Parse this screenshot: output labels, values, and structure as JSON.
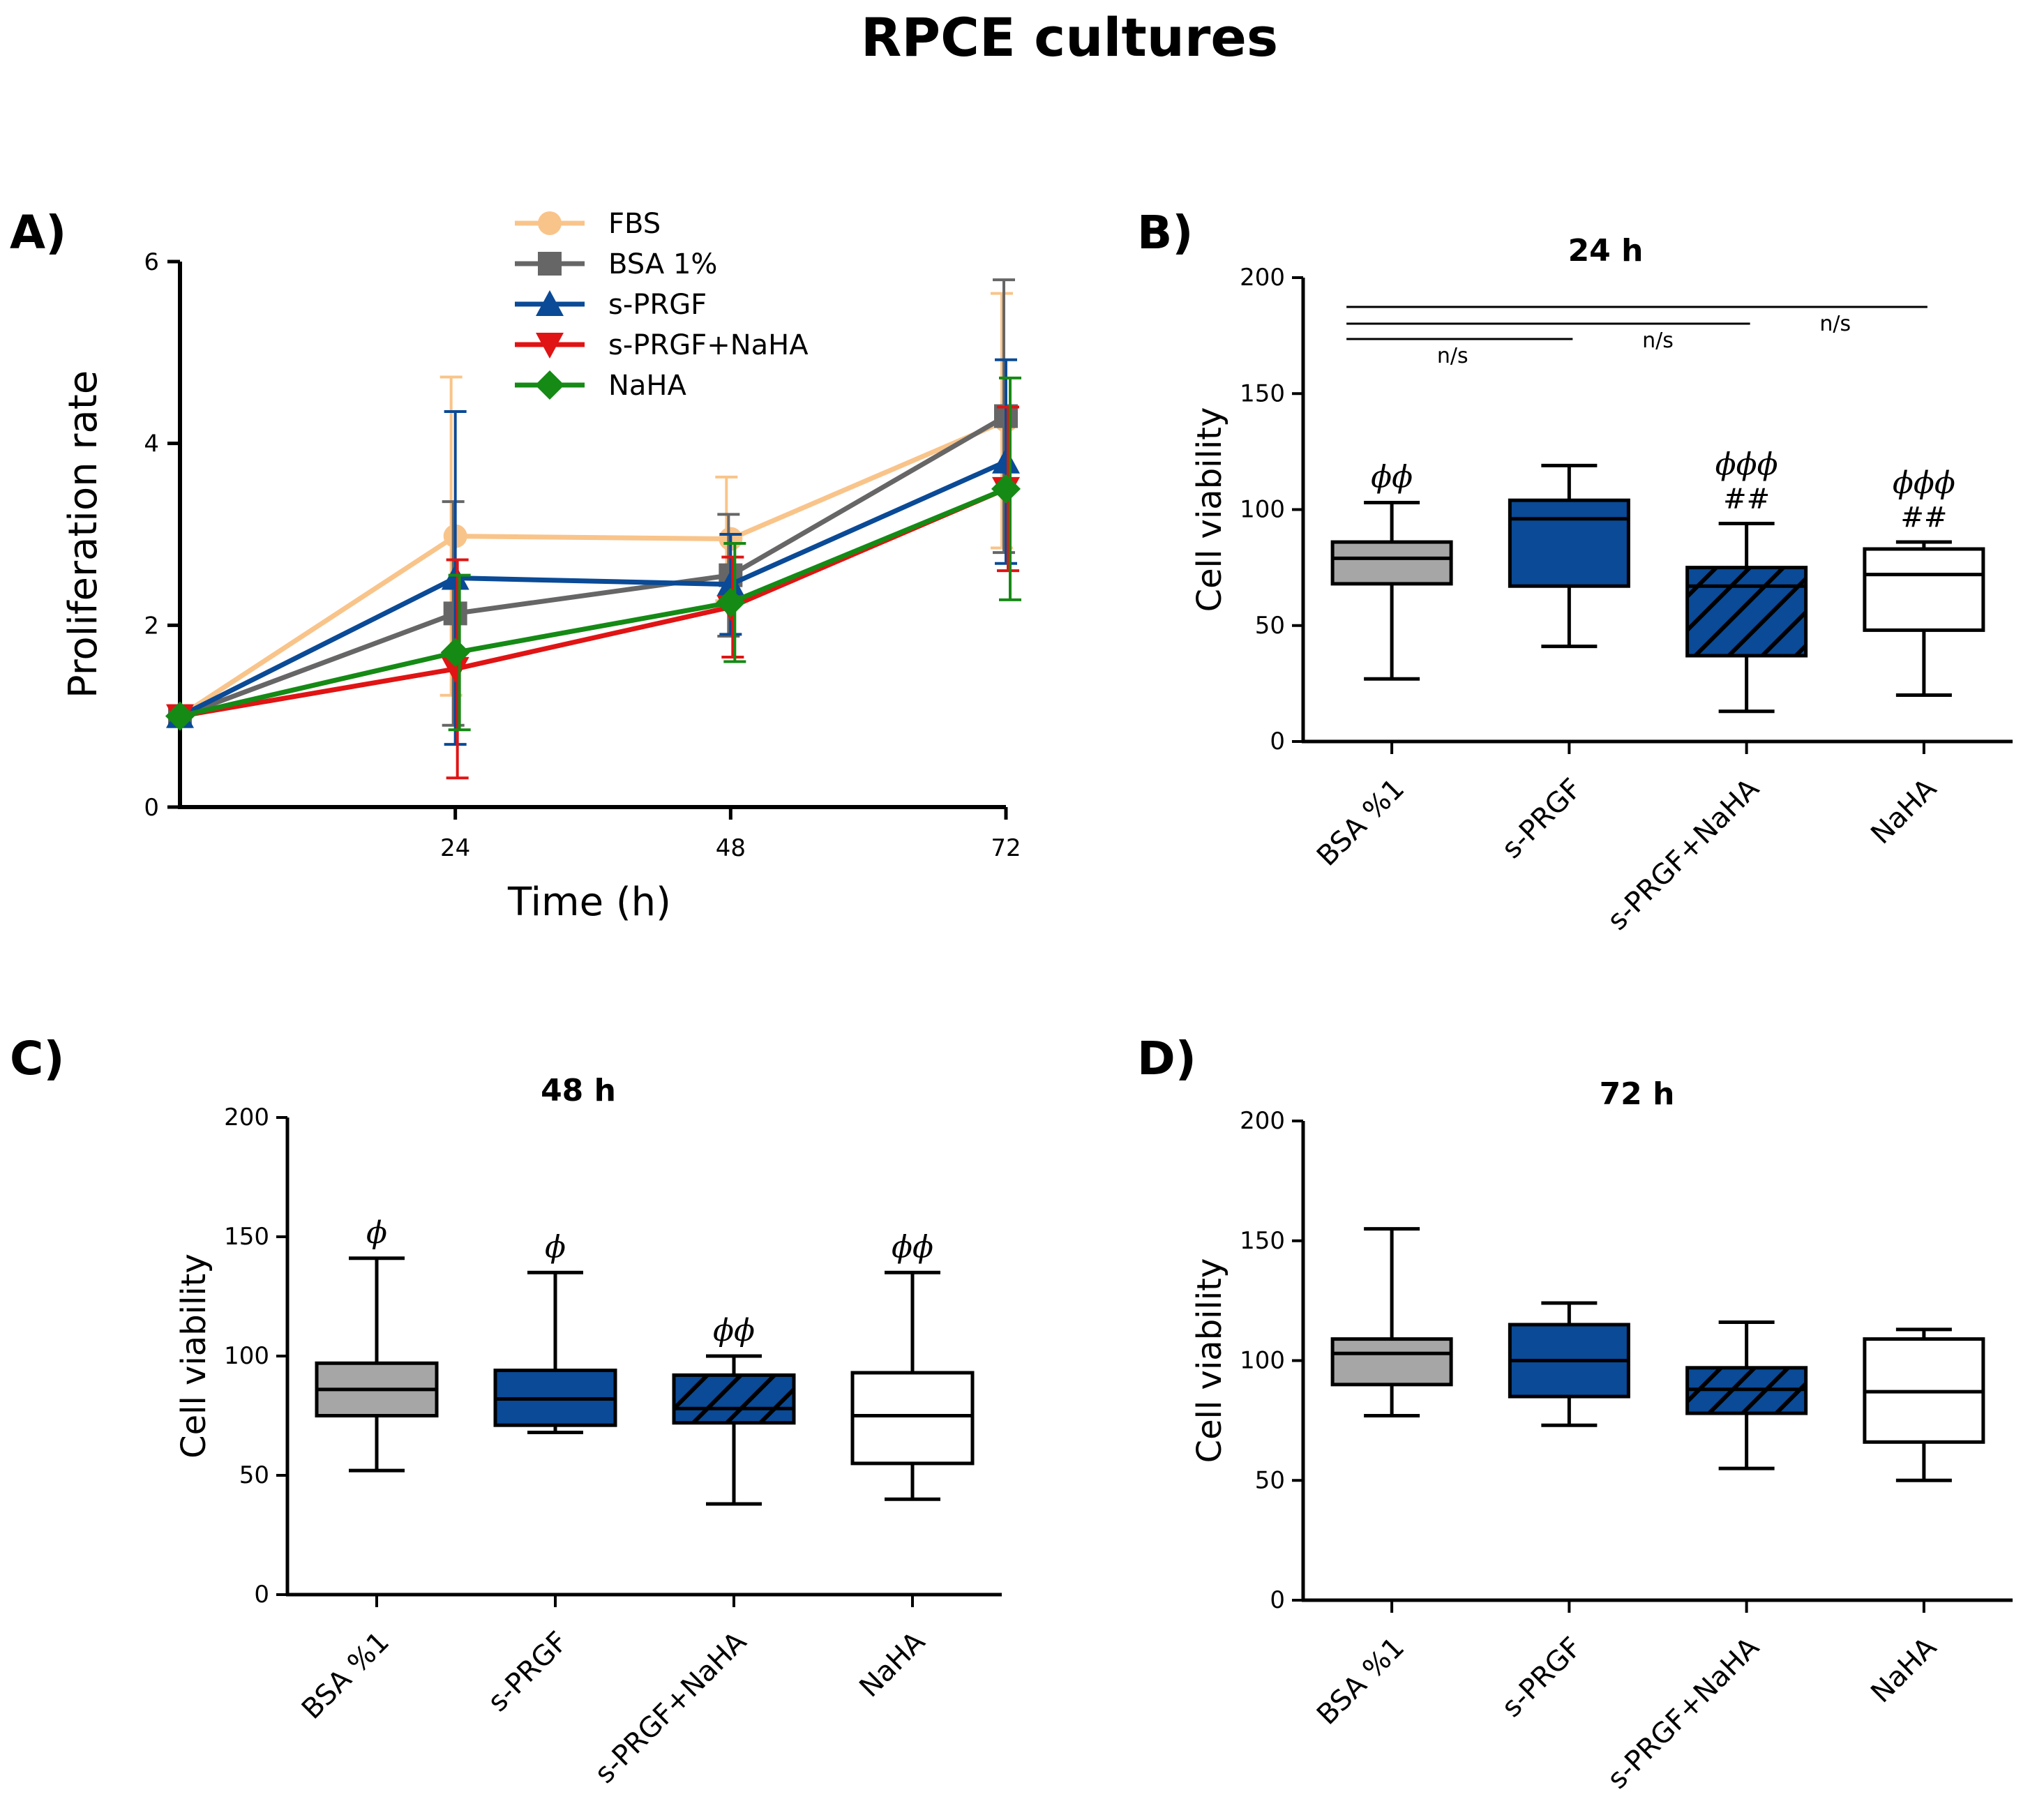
{
  "figure_title": "RPCE cultures",
  "colors": {
    "FBS": "#f9c48a",
    "BSA 1%": "#666666",
    "s-PRGF": "#0a4a96",
    "s-PRGF+NaHA": "#e01414",
    "NaHA": "#158a15",
    "box_gray": "#a6a6a6",
    "box_blue": "#0a4a96",
    "box_white": "#ffffff"
  },
  "panels": {
    "A": {
      "label": "A)"
    },
    "B": {
      "label": "B)"
    },
    "C": {
      "label": "C)"
    },
    "D": {
      "label": "D)"
    }
  },
  "chart_data": [
    {
      "id": "A",
      "type": "line",
      "title": "",
      "xlabel": "Time (h)",
      "ylabel": "Proliferation rate",
      "x": [
        0,
        24,
        48,
        72
      ],
      "xticks": [
        24,
        48,
        72
      ],
      "xlim": [
        0,
        72
      ],
      "ylim": [
        0,
        6
      ],
      "yticks": [
        0,
        2,
        4,
        6
      ],
      "legend_position": "top-center",
      "series": [
        {
          "name": "FBS",
          "marker": "circle",
          "values": [
            1.0,
            2.98,
            2.95,
            4.25
          ],
          "err": [
            0,
            1.75,
            0.68,
            1.4
          ]
        },
        {
          "name": "BSA 1%",
          "marker": "square",
          "values": [
            1.0,
            2.13,
            2.55,
            4.3
          ],
          "err": [
            0,
            1.23,
            0.67,
            1.5
          ]
        },
        {
          "name": "s-PRGF",
          "marker": "triangle-up",
          "values": [
            1.0,
            2.52,
            2.45,
            3.8
          ],
          "err": [
            0,
            1.83,
            0.55,
            1.12
          ]
        },
        {
          "name": "s-PRGF+NaHA",
          "marker": "triangle-down",
          "values": [
            1.0,
            1.52,
            2.2,
            3.5
          ],
          "err": [
            0,
            1.2,
            0.55,
            0.9
          ]
        },
        {
          "name": "NaHA",
          "marker": "diamond",
          "values": [
            1.0,
            1.7,
            2.25,
            3.5
          ],
          "err": [
            0,
            0.85,
            0.65,
            1.22
          ]
        }
      ]
    },
    {
      "id": "B",
      "type": "box",
      "title": "24 h",
      "ylabel": "Cell viability",
      "ylim": [
        0,
        200
      ],
      "yticks": [
        0,
        50,
        100,
        150,
        200
      ],
      "categories": [
        "BSA %1",
        "s-PRGF",
        "s-PRGF+NaHA",
        "NaHA"
      ],
      "boxes": [
        {
          "min": 27,
          "q1": 68,
          "median": 79,
          "q3": 86,
          "max": 103,
          "fill": "gray",
          "annotation": "ϕϕ",
          "hash": ""
        },
        {
          "min": 41,
          "q1": 67,
          "median": 96,
          "q3": 104,
          "max": 119,
          "fill": "blue",
          "annotation": "",
          "hash": ""
        },
        {
          "min": 13,
          "q1": 37,
          "median": 67,
          "q3": 75,
          "max": 94,
          "fill": "hatched",
          "annotation": "ϕϕϕ",
          "hash": "##"
        },
        {
          "min": 20,
          "q1": 48,
          "median": 72,
          "q3": 83,
          "max": 86,
          "fill": "white",
          "annotation": "ϕϕϕ",
          "hash": "##"
        }
      ],
      "comparisons": [
        {
          "from": 0,
          "to": 1,
          "label": "n/s"
        },
        {
          "from": 0,
          "to": 2,
          "label": "n/s"
        },
        {
          "from": 0,
          "to": 3,
          "label": "n/s"
        }
      ]
    },
    {
      "id": "C",
      "type": "box",
      "title": "48 h",
      "ylabel": "Cell viability",
      "ylim": [
        0,
        200
      ],
      "yticks": [
        0,
        50,
        100,
        150,
        200
      ],
      "categories": [
        "BSA %1",
        "s-PRGF",
        "s-PRGF+NaHA",
        "NaHA"
      ],
      "boxes": [
        {
          "min": 52,
          "q1": 75,
          "median": 86,
          "q3": 97,
          "max": 141,
          "fill": "gray",
          "annotation": "ϕ",
          "hash": ""
        },
        {
          "min": 68,
          "q1": 71,
          "median": 82,
          "q3": 94,
          "max": 135,
          "fill": "blue",
          "annotation": "ϕ",
          "hash": ""
        },
        {
          "min": 38,
          "q1": 72,
          "median": 78,
          "q3": 92,
          "max": 100,
          "fill": "hatched",
          "annotation": "ϕϕ",
          "hash": ""
        },
        {
          "min": 40,
          "q1": 55,
          "median": 75,
          "q3": 93,
          "max": 135,
          "fill": "white",
          "annotation": "ϕϕ",
          "hash": ""
        }
      ]
    },
    {
      "id": "D",
      "type": "box",
      "title": "72 h",
      "ylabel": "Cell viability",
      "ylim": [
        0,
        200
      ],
      "yticks": [
        0,
        50,
        100,
        150,
        200
      ],
      "categories": [
        "BSA %1",
        "s-PRGF",
        "s-PRGF+NaHA",
        "NaHA"
      ],
      "boxes": [
        {
          "min": 77,
          "q1": 90,
          "median": 103,
          "q3": 109,
          "max": 155,
          "fill": "gray",
          "annotation": "",
          "hash": ""
        },
        {
          "min": 73,
          "q1": 85,
          "median": 100,
          "q3": 115,
          "max": 124,
          "fill": "blue",
          "annotation": "",
          "hash": ""
        },
        {
          "min": 55,
          "q1": 78,
          "median": 88,
          "q3": 97,
          "max": 116,
          "fill": "hatched",
          "annotation": "",
          "hash": ""
        },
        {
          "min": 50,
          "q1": 66,
          "median": 87,
          "q3": 109,
          "max": 113,
          "fill": "white",
          "annotation": "",
          "hash": ""
        }
      ]
    }
  ]
}
